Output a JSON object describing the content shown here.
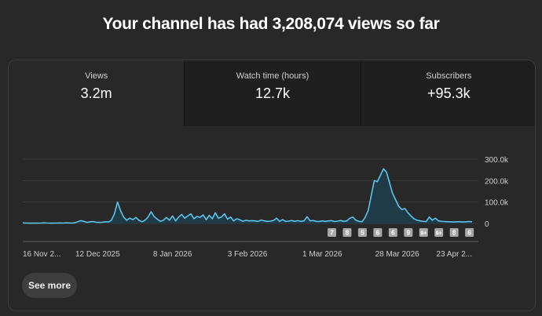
{
  "headline": "Your channel has had 3,208,074 views so far",
  "tabs": [
    {
      "label": "Views",
      "value": "3.2m"
    },
    {
      "label": "Watch time (hours)",
      "value": "12.7k"
    },
    {
      "label": "Subscribers",
      "value": "+95.3k"
    }
  ],
  "colors": {
    "line": "#5cc3ec",
    "area": "#1f3b48",
    "marker_bg": "#a8a8a8"
  },
  "see_more_label": "See more",
  "chart_data": {
    "type": "area",
    "x_start": "2025-11-16",
    "x_tick_labels": [
      "16 Nov 2...",
      "12 Dec 2025",
      "8 Jan 2026",
      "3 Feb 2026",
      "1 Mar 2026",
      "28 Mar 2026",
      "23 Apr 2..."
    ],
    "y_tick_labels": [
      "300.0k",
      "200.0k",
      "100.0k",
      "0"
    ],
    "ylim": [
      0,
      300000
    ],
    "grid": true,
    "series": [
      {
        "values": [
          3000,
          2000,
          1500,
          1500,
          2000,
          1500,
          2000,
          3000,
          2000,
          1500,
          1500,
          2000,
          2500,
          2000,
          3000,
          2500,
          2000,
          3000,
          8000,
          13000,
          10000,
          5000,
          8000,
          9000,
          6000,
          5000,
          6000,
          8000,
          7000,
          15000,
          45000,
          100000,
          60000,
          30000,
          15000,
          25000,
          18000,
          28000,
          15000,
          8000,
          15000,
          30000,
          55000,
          32000,
          20000,
          10000,
          15000,
          28000,
          15000,
          35000,
          12000,
          30000,
          42000,
          25000,
          35000,
          45000,
          22000,
          33000,
          28000,
          40000,
          18000,
          38000,
          22000,
          50000,
          25000,
          30000,
          45000,
          20000,
          30000,
          12000,
          22000,
          18000,
          10000,
          15000,
          12000,
          13000,
          12000,
          10000,
          16000,
          12000,
          10000,
          11000,
          14000,
          25000,
          10000,
          18000,
          10000,
          11000,
          14000,
          10000,
          13000,
          10000,
          12000,
          32000,
          12000,
          14000,
          10000,
          9000,
          12000,
          10000,
          12000,
          13000,
          9000,
          11000,
          14000,
          10000,
          12000,
          25000,
          30000,
          15000,
          10000,
          8000,
          28000,
          60000,
          130000,
          200000,
          195000,
          225000,
          255000,
          240000,
          190000,
          140000,
          110000,
          80000,
          65000,
          70000,
          50000,
          35000,
          22000,
          15000,
          12000,
          10000,
          9000,
          30000,
          15000,
          25000,
          12000,
          10000,
          9000,
          8000,
          8000,
          7000,
          8000,
          8000,
          7000,
          8000,
          9000,
          8000
        ]
      }
    ],
    "markers": [
      "7",
      "8",
      "5",
      "6",
      "6",
      "9",
      "9+",
      "9+",
      "8",
      "6"
    ],
    "markers_x": [
      "2026-02-25",
      "2026-03-02",
      "2026-03-07",
      "2026-03-12",
      "2026-03-17",
      "2026-03-22",
      "2026-03-27",
      "2026-04-01",
      "2026-04-06",
      "2026-04-11"
    ]
  }
}
